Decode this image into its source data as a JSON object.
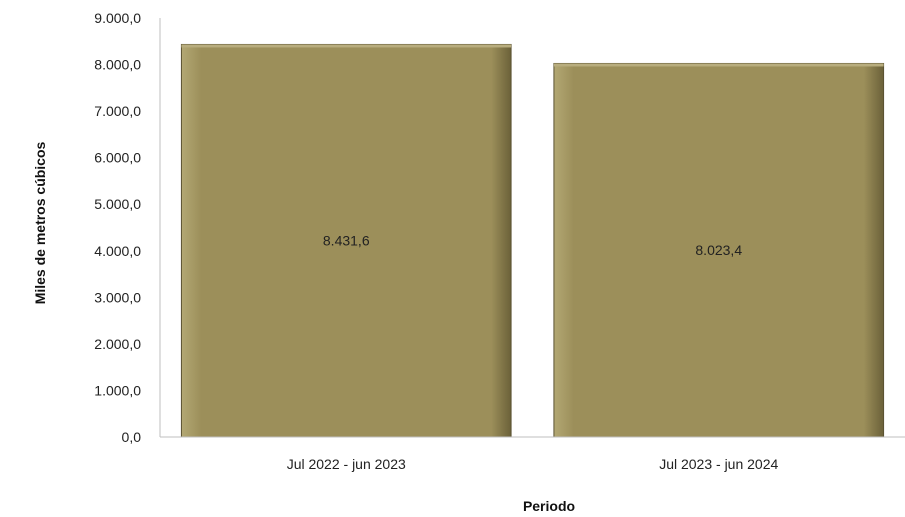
{
  "chart_data": {
    "type": "bar",
    "title": "",
    "xlabel": "Periodo",
    "ylabel": "Miles de metros cúbicos",
    "categories": [
      "Jul 2022 - jun 2023",
      "Jul 2023 - jun 2024"
    ],
    "values": [
      8431.6,
      8023.4
    ],
    "value_labels": [
      "8.431,6",
      "8.023,4"
    ],
    "ylim": [
      0,
      9000
    ],
    "y_ticks": [
      0,
      1000,
      2000,
      3000,
      4000,
      5000,
      6000,
      7000,
      8000,
      9000
    ],
    "y_tick_labels": [
      "0,0",
      "1.000,0",
      "2.000,0",
      "3.000,0",
      "4.000,0",
      "5.000,0",
      "6.000,0",
      "7.000,0",
      "8.000,0",
      "9.000,0"
    ],
    "grid": false,
    "legend": "none",
    "colors": {
      "bar_fill": "#9c8f5a",
      "bar_edge_light": "#b8ad7e",
      "bar_edge_dark": "#5a5232",
      "axis": "#bfbfbf"
    }
  }
}
